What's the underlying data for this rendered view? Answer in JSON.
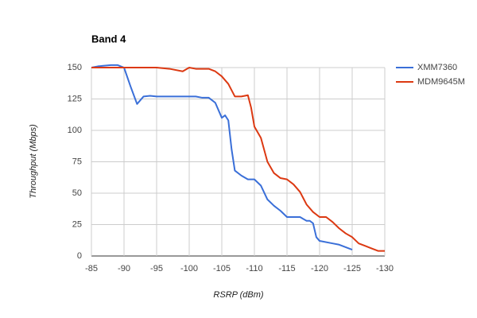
{
  "chart_data": {
    "type": "line",
    "title": "Band 4",
    "x_label": "RSRP (dBm)",
    "y_label": "Throughput (Mbps)",
    "xlim": [
      -85,
      -130
    ],
    "xticks": [
      -85,
      -90,
      -95,
      -100,
      -105,
      -110,
      -115,
      -120,
      -125,
      -130
    ],
    "ylim": [
      0,
      150
    ],
    "yticks": [
      0,
      25,
      50,
      75,
      100,
      125,
      150
    ],
    "grid": true,
    "legend": "right",
    "series": [
      {
        "name": "XMM7360",
        "color": "#3a6fd8",
        "x": [
          -85,
          -86,
          -88,
          -89,
          -90,
          -91,
          -92,
          -93,
          -94,
          -95,
          -100,
          -101,
          -102,
          -103,
          -104,
          -105,
          -105.5,
          -106,
          -106.5,
          -107,
          -108,
          -109,
          -110,
          -111,
          -112,
          -113,
          -114,
          -115,
          -116,
          -117,
          -118,
          -118.5,
          -119,
          -119.5,
          -120,
          -122,
          -123,
          -125
        ],
        "values": [
          150,
          151,
          152,
          152,
          150,
          135,
          121,
          127,
          127.5,
          127,
          127,
          127,
          126,
          126,
          122,
          110,
          112,
          108,
          85,
          68,
          64,
          61,
          61,
          56,
          45,
          40,
          36,
          31,
          31,
          31,
          28,
          28,
          26,
          15,
          12,
          10,
          9,
          5
        ]
      },
      {
        "name": "MDM9645M",
        "color": "#dc3912",
        "x": [
          -85,
          -90,
          -94,
          -95,
          -97,
          -99,
          -100,
          -101,
          -103,
          -104,
          -105,
          -106,
          -107,
          -108,
          -109,
          -109.5,
          -110,
          -111,
          -112,
          -113,
          -114,
          -115,
          -116,
          -117,
          -118,
          -119,
          -120,
          -121,
          -122,
          -123,
          -124,
          -125,
          -126,
          -127,
          -128,
          -129,
          -130
        ],
        "values": [
          150,
          150,
          150,
          150,
          149,
          147,
          150,
          149,
          149,
          147,
          143,
          137,
          127,
          127,
          128,
          118,
          103,
          94,
          75,
          66,
          62,
          61,
          57,
          51,
          41,
          35,
          31,
          31,
          27,
          22,
          18,
          15,
          10,
          8,
          6,
          4,
          4
        ]
      }
    ]
  }
}
